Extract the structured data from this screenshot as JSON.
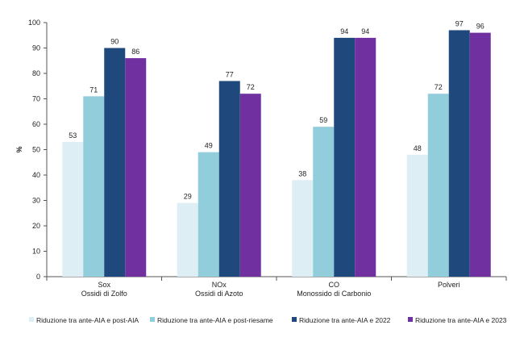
{
  "chart_data": {
    "type": "bar",
    "title": "",
    "xlabel": "",
    "ylabel": "%",
    "ylim": [
      0,
      100
    ],
    "yticks": [
      0,
      10,
      20,
      30,
      40,
      50,
      60,
      70,
      80,
      90,
      100
    ],
    "grid": false,
    "legend_position": "bottom",
    "categories": [
      [
        "Sox",
        "Ossidi di Zolfo"
      ],
      [
        "NOx",
        "Ossidi di Azoto"
      ],
      [
        "CO",
        "Monossido di Carbonio"
      ],
      [
        "Polveri"
      ]
    ],
    "series": [
      {
        "name": "Riduzione tra ante-AIA e post-AIA",
        "color": "#ddeef4",
        "values": [
          53,
          29,
          38,
          48
        ]
      },
      {
        "name": "Riduzione tra ante-AIA e post-riesame",
        "color": "#92cddc",
        "values": [
          71,
          49,
          59,
          72
        ]
      },
      {
        "name": "Riduzione tra ante-AIA e 2022",
        "color": "#1f497d",
        "values": [
          90,
          77,
          94,
          97
        ]
      },
      {
        "name": "Riduzione tra ante-AIA e 2023",
        "color": "#7030a0",
        "values": [
          86,
          72,
          94,
          96
        ]
      }
    ]
  }
}
